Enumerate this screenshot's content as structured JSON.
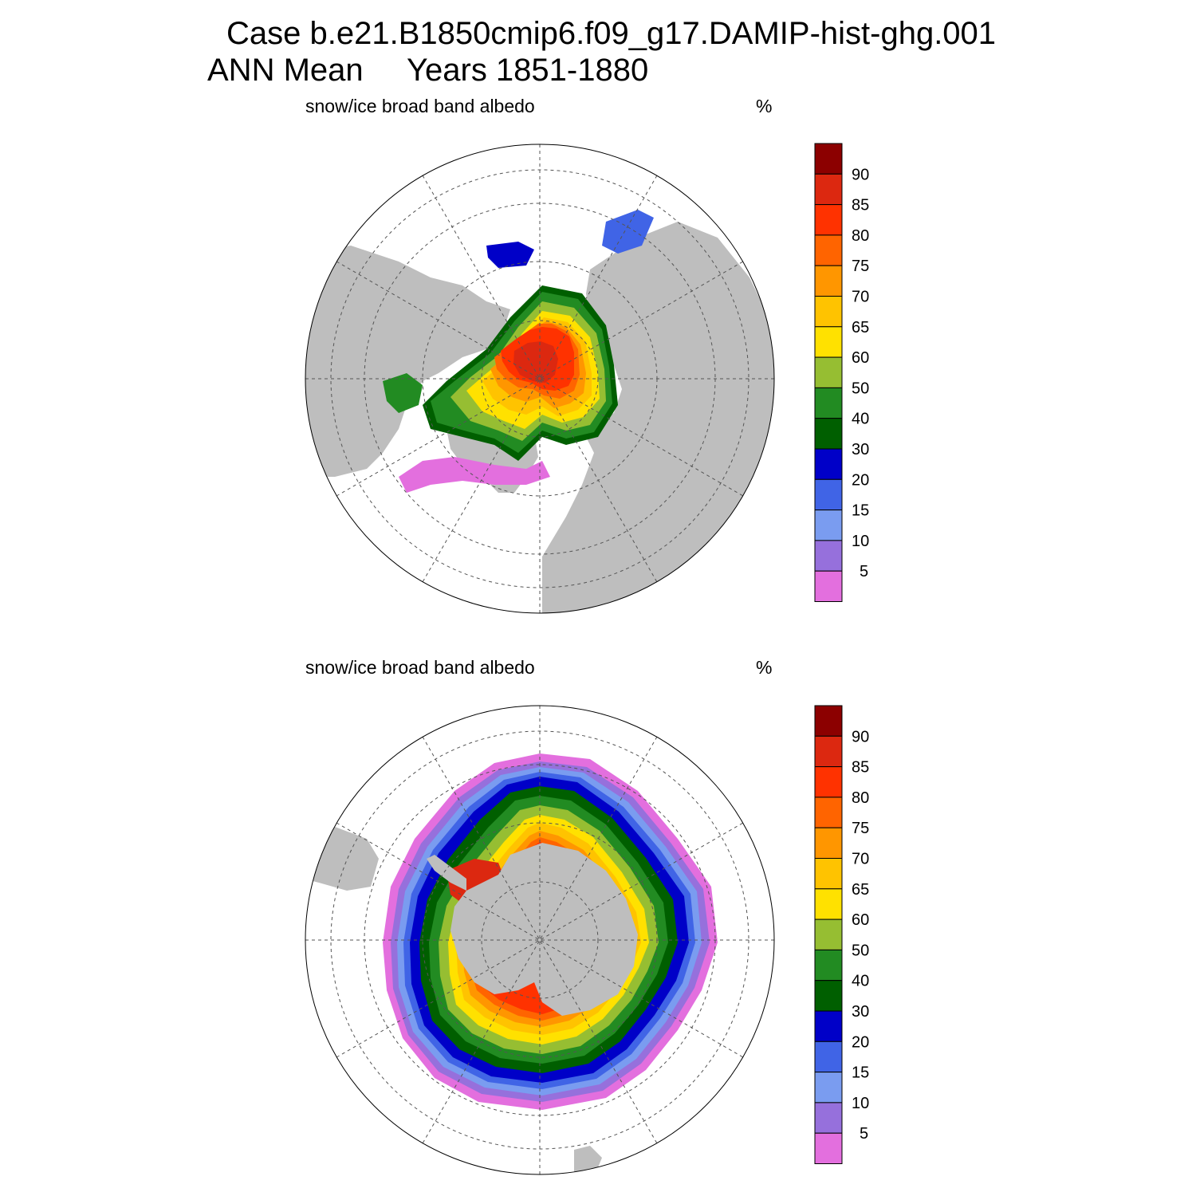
{
  "title": {
    "line1": "Case b.e21.B1850cmip6.f09_g17.DAMIP-hist-ghg.001",
    "line2_left": "ANN Mean",
    "line2_right": "Years 1851-1880"
  },
  "colors": {
    "land": "#bebebe",
    "ocean": "#ffffff",
    "grid": "#555555",
    "levels": [
      "#e36fde",
      "#9670dc",
      "#7a9cf0",
      "#4064e6",
      "#0000c8",
      "#005f00",
      "#228b22",
      "#96be32",
      "#ffe100",
      "#ffc300",
      "#ff9600",
      "#ff6400",
      "#ff3200",
      "#dc2810",
      "#8c0000"
    ]
  },
  "colorbar": {
    "tick_labels": [
      "5",
      "10",
      "15",
      "20",
      "30",
      "40",
      "50",
      "60",
      "65",
      "70",
      "75",
      "80",
      "85",
      "90"
    ]
  },
  "panels": [
    {
      "id": "north",
      "label": "snow/ice broad band albedo",
      "unit": "%",
      "hemisphere": "Arctic"
    },
    {
      "id": "south",
      "label": "snow/ice broad band albedo",
      "unit": "%",
      "hemisphere": "Antarctic"
    }
  ]
}
